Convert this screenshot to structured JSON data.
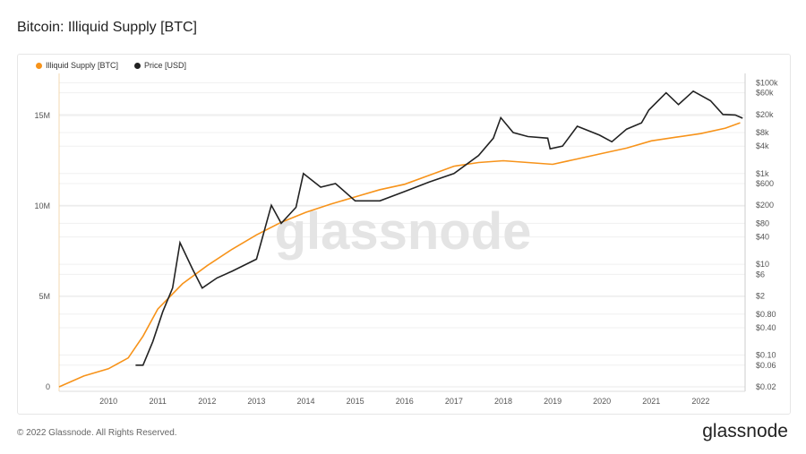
{
  "title": "Bitcoin: Illiquid Supply [BTC]",
  "footer": "© 2022 Glassnode. All Rights Reserved.",
  "brand": "glassnode",
  "watermark": "glassnode",
  "chart_data": {
    "type": "line",
    "title": "Bitcoin: Illiquid Supply [BTC]",
    "legend_placement": "top-left",
    "grid": true,
    "x_ticks": [
      "2010",
      "2011",
      "2012",
      "2013",
      "2014",
      "2015",
      "2016",
      "2017",
      "2018",
      "2019",
      "2020",
      "2021",
      "2022"
    ],
    "xlim": [
      2009.0,
      2022.9
    ],
    "y_left": {
      "ticks": [
        {
          "v": 0,
          "l": "0"
        },
        {
          "v": 5,
          "l": "5M"
        },
        {
          "v": 10,
          "l": "10M"
        },
        {
          "v": 15,
          "l": "15M"
        }
      ],
      "unit": "million BTC",
      "lim": [
        0,
        16.5
      ]
    },
    "y_right": {
      "scale": "log",
      "lim": [
        0.02,
        100000
      ],
      "ticks": [
        {
          "v": 100000,
          "l": "$100k"
        },
        {
          "v": 60000,
          "l": "$60k"
        },
        {
          "v": 20000,
          "l": "$20k"
        },
        {
          "v": 8000,
          "l": "$8k"
        },
        {
          "v": 4000,
          "l": "$4k"
        },
        {
          "v": 1000,
          "l": "$1k"
        },
        {
          "v": 600,
          "l": "$600"
        },
        {
          "v": 200,
          "l": "$200"
        },
        {
          "v": 80,
          "l": "$80"
        },
        {
          "v": 40,
          "l": "$40"
        },
        {
          "v": 10,
          "l": "$10"
        },
        {
          "v": 6,
          "l": "$6"
        },
        {
          "v": 2,
          "l": "$2"
        },
        {
          "v": 0.8,
          "l": "$0.80"
        },
        {
          "v": 0.4,
          "l": "$0.40"
        },
        {
          "v": 0.1,
          "l": "$0.10"
        },
        {
          "v": 0.06,
          "l": "$0.06"
        },
        {
          "v": 0.02,
          "l": "$0.02"
        }
      ]
    },
    "series": [
      {
        "name": "Illiquid Supply [BTC]",
        "color": "#f7931a",
        "axis": "left",
        "points": [
          [
            2009.0,
            0
          ],
          [
            2009.5,
            0.6
          ],
          [
            2010.0,
            1.0
          ],
          [
            2010.4,
            1.6
          ],
          [
            2010.7,
            2.8
          ],
          [
            2011.0,
            4.3
          ],
          [
            2011.5,
            5.7
          ],
          [
            2012.0,
            6.7
          ],
          [
            2012.5,
            7.6
          ],
          [
            2013.0,
            8.4
          ],
          [
            2013.5,
            9.1
          ],
          [
            2014.0,
            9.65
          ],
          [
            2014.5,
            10.1
          ],
          [
            2015.0,
            10.5
          ],
          [
            2015.5,
            10.9
          ],
          [
            2016.0,
            11.2
          ],
          [
            2016.5,
            11.7
          ],
          [
            2017.0,
            12.2
          ],
          [
            2017.5,
            12.4
          ],
          [
            2018.0,
            12.5
          ],
          [
            2018.5,
            12.4
          ],
          [
            2019.0,
            12.3
          ],
          [
            2019.5,
            12.6
          ],
          [
            2020.0,
            12.9
          ],
          [
            2020.5,
            13.2
          ],
          [
            2021.0,
            13.6
          ],
          [
            2021.5,
            13.8
          ],
          [
            2022.0,
            14.0
          ],
          [
            2022.5,
            14.3
          ],
          [
            2022.8,
            14.6
          ]
        ]
      },
      {
        "name": "Price [USD]",
        "color": "#222222",
        "axis": "right",
        "points": [
          [
            2010.55,
            0.06
          ],
          [
            2010.7,
            0.06
          ],
          [
            2010.9,
            0.2
          ],
          [
            2011.1,
            0.9
          ],
          [
            2011.3,
            3
          ],
          [
            2011.45,
            30
          ],
          [
            2011.7,
            8
          ],
          [
            2011.9,
            3
          ],
          [
            2012.2,
            5
          ],
          [
            2012.5,
            7
          ],
          [
            2013.0,
            13
          ],
          [
            2013.3,
            200
          ],
          [
            2013.5,
            80
          ],
          [
            2013.8,
            180
          ],
          [
            2013.95,
            1000
          ],
          [
            2014.3,
            500
          ],
          [
            2014.6,
            600
          ],
          [
            2015.0,
            250
          ],
          [
            2015.5,
            250
          ],
          [
            2016.0,
            400
          ],
          [
            2016.5,
            650
          ],
          [
            2017.0,
            1000
          ],
          [
            2017.5,
            2500
          ],
          [
            2017.8,
            6000
          ],
          [
            2017.95,
            17000
          ],
          [
            2018.2,
            8000
          ],
          [
            2018.5,
            6500
          ],
          [
            2018.9,
            6000
          ],
          [
            2018.95,
            3500
          ],
          [
            2019.2,
            4000
          ],
          [
            2019.5,
            11000
          ],
          [
            2019.95,
            7000
          ],
          [
            2020.2,
            5000
          ],
          [
            2020.5,
            9500
          ],
          [
            2020.8,
            13000
          ],
          [
            2020.95,
            25000
          ],
          [
            2021.3,
            60000
          ],
          [
            2021.55,
            33000
          ],
          [
            2021.85,
            65000
          ],
          [
            2022.2,
            40000
          ],
          [
            2022.45,
            20000
          ],
          [
            2022.7,
            19500
          ],
          [
            2022.85,
            16500
          ]
        ]
      }
    ]
  }
}
